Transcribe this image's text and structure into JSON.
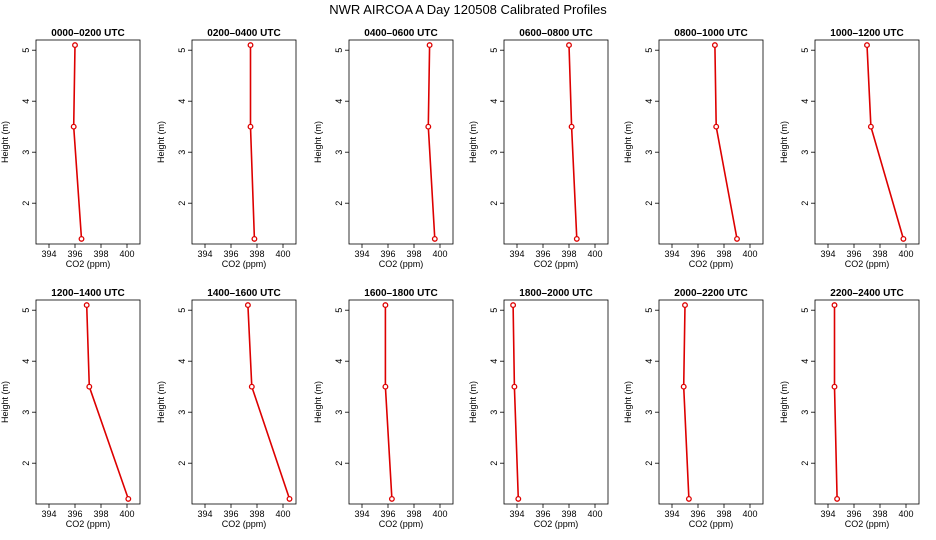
{
  "title": "NWR AIRCOA A  Day 120508  Calibrated Profiles",
  "colors": {
    "series": "#dd0000",
    "axis": "#000000",
    "background": "#ffffff"
  },
  "chart_data": [
    {
      "type": "line",
      "title": "0000–0200 UTC",
      "xlabel": "CO2 (ppm)",
      "ylabel": "Height (m)",
      "xlim": [
        393,
        401
      ],
      "ylim": [
        1.2,
        5.2
      ],
      "xticks": [
        394,
        396,
        398,
        400
      ],
      "yticks": [
        2,
        3,
        4,
        5
      ],
      "heights": [
        5.1,
        3.5,
        1.3
      ],
      "values": [
        396.0,
        395.9,
        396.5
      ]
    },
    {
      "type": "line",
      "title": "0200–0400 UTC",
      "xlabel": "CO2 (ppm)",
      "ylabel": "Height (m)",
      "xlim": [
        393,
        401
      ],
      "ylim": [
        1.2,
        5.2
      ],
      "xticks": [
        394,
        396,
        398,
        400
      ],
      "yticks": [
        2,
        3,
        4,
        5
      ],
      "heights": [
        5.1,
        3.5,
        1.3
      ],
      "values": [
        397.5,
        397.5,
        397.8
      ]
    },
    {
      "type": "line",
      "title": "0400–0600 UTC",
      "xlabel": "CO2 (ppm)",
      "ylabel": "Height (m)",
      "xlim": [
        393,
        401
      ],
      "ylim": [
        1.2,
        5.2
      ],
      "xticks": [
        394,
        396,
        398,
        400
      ],
      "yticks": [
        2,
        3,
        4,
        5
      ],
      "heights": [
        5.1,
        3.5,
        1.3
      ],
      "values": [
        399.2,
        399.1,
        399.6
      ]
    },
    {
      "type": "line",
      "title": "0600–0800 UTC",
      "xlabel": "CO2 (ppm)",
      "ylabel": "Height (m)",
      "xlim": [
        393,
        401
      ],
      "ylim": [
        1.2,
        5.2
      ],
      "xticks": [
        394,
        396,
        398,
        400
      ],
      "yticks": [
        2,
        3,
        4,
        5
      ],
      "heights": [
        5.1,
        3.5,
        1.3
      ],
      "values": [
        398.0,
        398.2,
        398.6
      ]
    },
    {
      "type": "line",
      "title": "0800–1000 UTC",
      "xlabel": "CO2 (ppm)",
      "ylabel": "Height (m)",
      "xlim": [
        393,
        401
      ],
      "ylim": [
        1.2,
        5.2
      ],
      "xticks": [
        394,
        396,
        398,
        400
      ],
      "yticks": [
        2,
        3,
        4,
        5
      ],
      "heights": [
        5.1,
        3.5,
        1.3
      ],
      "values": [
        397.3,
        397.4,
        399.0
      ]
    },
    {
      "type": "line",
      "title": "1000–1200 UTC",
      "xlabel": "CO2 (ppm)",
      "ylabel": "Height (m)",
      "xlim": [
        393,
        401
      ],
      "ylim": [
        1.2,
        5.2
      ],
      "xticks": [
        394,
        396,
        398,
        400
      ],
      "yticks": [
        2,
        3,
        4,
        5
      ],
      "heights": [
        5.1,
        3.5,
        1.3
      ],
      "values": [
        397.0,
        397.3,
        399.8
      ]
    },
    {
      "type": "line",
      "title": "1200–1400 UTC",
      "xlabel": "CO2 (ppm)",
      "ylabel": "Height (m)",
      "xlim": [
        393,
        401
      ],
      "ylim": [
        1.2,
        5.2
      ],
      "xticks": [
        394,
        396,
        398,
        400
      ],
      "yticks": [
        2,
        3,
        4,
        5
      ],
      "heights": [
        5.1,
        3.5,
        1.3
      ],
      "values": [
        396.9,
        397.1,
        400.1
      ]
    },
    {
      "type": "line",
      "title": "1400–1600 UTC",
      "xlabel": "CO2 (ppm)",
      "ylabel": "Height (m)",
      "xlim": [
        393,
        401
      ],
      "ylim": [
        1.2,
        5.2
      ],
      "xticks": [
        394,
        396,
        398,
        400
      ],
      "yticks": [
        2,
        3,
        4,
        5
      ],
      "heights": [
        5.1,
        3.5,
        1.3
      ],
      "values": [
        397.3,
        397.6,
        400.5
      ]
    },
    {
      "type": "line",
      "title": "1600–1800 UTC",
      "xlabel": "CO2 (ppm)",
      "ylabel": "Height (m)",
      "xlim": [
        393,
        401
      ],
      "ylim": [
        1.2,
        5.2
      ],
      "xticks": [
        394,
        396,
        398,
        400
      ],
      "yticks": [
        2,
        3,
        4,
        5
      ],
      "heights": [
        5.1,
        3.5,
        1.3
      ],
      "values": [
        395.8,
        395.8,
        396.3
      ]
    },
    {
      "type": "line",
      "title": "1800–2000 UTC",
      "xlabel": "CO2 (ppm)",
      "ylabel": "Height (m)",
      "xlim": [
        393,
        401
      ],
      "ylim": [
        1.2,
        5.2
      ],
      "xticks": [
        394,
        396,
        398,
        400
      ],
      "yticks": [
        2,
        3,
        4,
        5
      ],
      "heights": [
        5.1,
        3.5,
        1.3
      ],
      "values": [
        393.7,
        393.8,
        394.1
      ]
    },
    {
      "type": "line",
      "title": "2000–2200 UTC",
      "xlabel": "CO2 (ppm)",
      "ylabel": "Height (m)",
      "xlim": [
        393,
        401
      ],
      "ylim": [
        1.2,
        5.2
      ],
      "xticks": [
        394,
        396,
        398,
        400
      ],
      "yticks": [
        2,
        3,
        4,
        5
      ],
      "heights": [
        5.1,
        3.5,
        1.3
      ],
      "values": [
        395.0,
        394.9,
        395.3
      ]
    },
    {
      "type": "line",
      "title": "2200–2400 UTC",
      "xlabel": "CO2 (ppm)",
      "ylabel": "Height (m)",
      "xlim": [
        393,
        401
      ],
      "ylim": [
        1.2,
        5.2
      ],
      "xticks": [
        394,
        396,
        398,
        400
      ],
      "yticks": [
        2,
        3,
        4,
        5
      ],
      "heights": [
        5.1,
        3.5,
        1.3
      ],
      "values": [
        394.5,
        394.5,
        394.7
      ]
    }
  ]
}
